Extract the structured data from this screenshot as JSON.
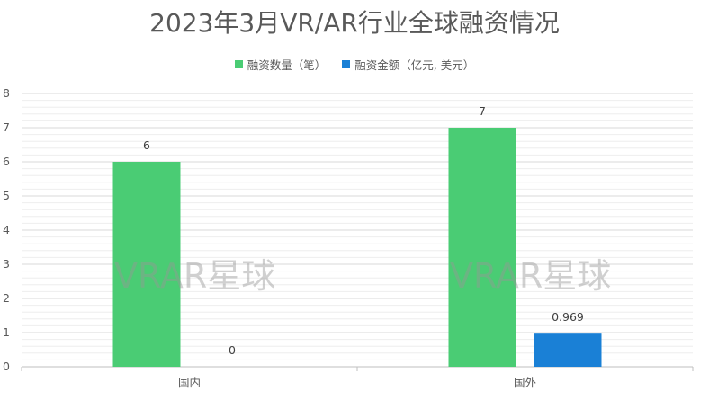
{
  "chart_data": {
    "type": "bar",
    "title": "2023年3月VR/AR行业全球融资情况",
    "categories": [
      "国内",
      "国外"
    ],
    "series": [
      {
        "name": "融资数量（笔）",
        "values": [
          6,
          7
        ],
        "labels": [
          "6",
          "7"
        ],
        "color": "#4acc74"
      },
      {
        "name": "融资金额（亿元, 美元）",
        "values": [
          0,
          0.969
        ],
        "labels": [
          "0",
          "0.969"
        ],
        "color": "#1a80d6"
      }
    ],
    "ylim": [
      0,
      8
    ],
    "yticks": [
      "0",
      "1",
      "2",
      "3",
      "4",
      "5",
      "6",
      "7",
      "8"
    ],
    "grid": true,
    "legend": "top"
  },
  "watermark": "VRAR星球"
}
